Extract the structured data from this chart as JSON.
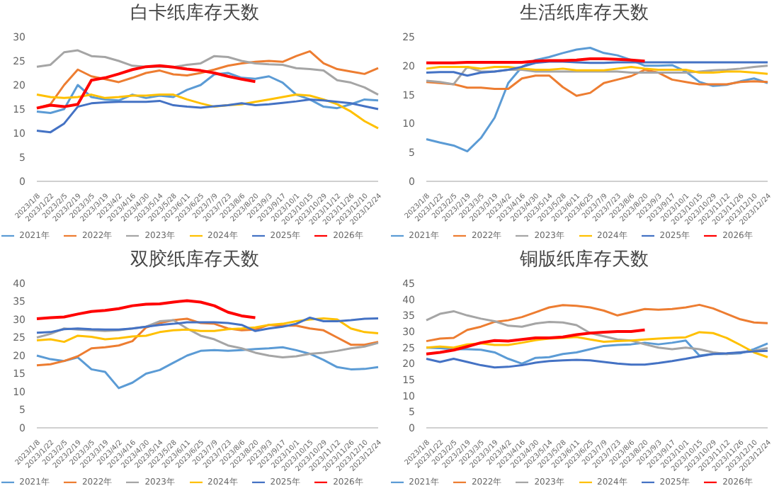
{
  "chart_data": [
    {
      "type": "line",
      "title": "白卡纸库存天数",
      "categories": [
        "2023/1/8",
        "2023/1/22",
        "2023/2/5",
        "2023/2/19",
        "2023/3/5",
        "2023/3/19",
        "2023/4/2",
        "2023/4/16",
        "2023/4/30",
        "2023/5/14",
        "2023/5/28",
        "2023/6/11",
        "2023/6/25",
        "2023/7/9",
        "2023/7/23",
        "2023/8/6",
        "2023/8/20",
        "2023/9/3",
        "2023/9/17",
        "2023/10/1",
        "2023/10/15",
        "2023/10/29",
        "2023/11/12",
        "2023/11/26",
        "2023/12/10",
        "2023/12/24"
      ],
      "ylim": [
        0,
        30
      ],
      "yticks": [
        0,
        5,
        10,
        15,
        20,
        25,
        30
      ],
      "grid": false,
      "legend": "bottom",
      "series": [
        {
          "name": "2021年",
          "color": "#5b9bd5",
          "values": [
            14.5,
            14.2,
            15,
            20,
            17.5,
            17,
            16.8,
            18,
            17.3,
            17.8,
            17.5,
            19,
            20,
            22.2,
            22.5,
            21.5,
            21.3,
            21.8,
            20.5,
            18,
            17,
            15.5,
            15.2,
            16,
            17,
            16.8
          ]
        },
        {
          "name": "2022年",
          "color": "#ed7d31",
          "values": [
            15.2,
            16,
            20,
            23.2,
            21.8,
            21.2,
            20.6,
            21.5,
            22.5,
            23,
            22.2,
            22,
            22.5,
            23.2,
            24,
            24.5,
            24.8,
            25,
            24.8,
            26,
            27,
            24.5,
            23.3,
            22.8,
            22.3,
            23.5
          ]
        },
        {
          "name": "2023年",
          "color": "#a5a5a5",
          "values": [
            23.8,
            24.2,
            26.8,
            27.2,
            26,
            25.8,
            25,
            24,
            23.8,
            23.8,
            23.7,
            24.2,
            24.5,
            26,
            25.8,
            25,
            24.5,
            24.3,
            24.2,
            23.5,
            23.3,
            23,
            21,
            20.5,
            19.5,
            18
          ]
        },
        {
          "name": "2024年",
          "color": "#ffc000",
          "values": [
            18,
            17.5,
            17.3,
            17.5,
            18,
            17.3,
            17.5,
            17.8,
            17.8,
            18,
            18,
            17,
            16.2,
            15.5,
            15.8,
            16,
            16.5,
            17,
            17.5,
            18,
            17.8,
            17,
            16,
            14.5,
            12.5,
            11
          ]
        },
        {
          "name": "2025年",
          "color": "#4472c4",
          "values": [
            10.5,
            10.2,
            12,
            15.5,
            16.2,
            16.4,
            16.5,
            16.5,
            16.5,
            16.7,
            15.8,
            15.5,
            15.3,
            15.6,
            15.8,
            16.2,
            15.8,
            16,
            16.3,
            16.6,
            17,
            16.8,
            16.5,
            16.2,
            15.6,
            15
          ]
        },
        {
          "name": "2026年",
          "color": "#ff0000",
          "values": [
            15.2,
            15.8,
            15.5,
            16,
            21,
            21.5,
            22.3,
            23.2,
            23.8,
            24,
            23.7,
            23.3,
            23,
            22.5,
            21.8,
            21.2,
            20.7,
            null,
            null,
            null,
            null,
            null,
            null,
            null,
            null,
            null
          ]
        }
      ]
    },
    {
      "type": "line",
      "title": "生活纸库存天数",
      "categories": [
        "2023/1/8",
        "2023/1/22",
        "2023/2/5",
        "2023/2/19",
        "2023/3/5",
        "2023/3/19",
        "2023/4/2",
        "2023/4/16",
        "2023/4/30",
        "2023/5/14",
        "2023/5/28",
        "2023/6/11",
        "2023/6/25",
        "2023/7/9",
        "2023/7/23",
        "2023/8/6",
        "2023/8/20",
        "2023/9/3",
        "2023/9/17",
        "2023/10/1",
        "2023/10/15",
        "2023/10/29",
        "2023/11/12",
        "2023/11/26",
        "2023/12/10",
        "2023/12/24"
      ],
      "ylim": [
        0,
        25
      ],
      "yticks": [
        0,
        5,
        10,
        15,
        20,
        25
      ],
      "grid": false,
      "legend": "bottom",
      "series": [
        {
          "name": "2021年",
          "color": "#5b9bd5",
          "values": [
            7.3,
            6.7,
            6.2,
            5.2,
            7.5,
            11,
            17,
            19.8,
            21,
            21.5,
            22.2,
            22.8,
            23.1,
            22.2,
            21.8,
            21,
            20,
            20,
            20.1,
            19,
            17.2,
            16.5,
            16.7,
            17.3,
            17.8,
            17
          ]
        },
        {
          "name": "2022年",
          "color": "#ed7d31",
          "values": [
            17.2,
            17,
            16.8,
            16.2,
            16.2,
            16,
            16,
            17.8,
            18.3,
            18.3,
            16.3,
            14.8,
            15.3,
            17,
            17.6,
            18.2,
            19.3,
            18.8,
            17.6,
            17.2,
            16.8,
            16.8,
            16.8,
            17.2,
            17.3,
            17.2
          ]
        },
        {
          "name": "2023年",
          "color": "#a5a5a5",
          "values": [
            17.4,
            17.2,
            16.8,
            19.8,
            19,
            19,
            19.3,
            19.3,
            19,
            19,
            19,
            19,
            19,
            19,
            19,
            18.8,
            18.8,
            18.8,
            18.8,
            18.8,
            19,
            19.2,
            19.3,
            19.5,
            19.8,
            20
          ]
        },
        {
          "name": "2024年",
          "color": "#ffc000",
          "values": [
            19.5,
            19.8,
            19.8,
            19.8,
            19.5,
            19.8,
            19.8,
            19.5,
            19.3,
            19.3,
            19.5,
            19.2,
            19.2,
            19.2,
            19.5,
            19.8,
            19.5,
            19.3,
            19.3,
            19.3,
            18.8,
            18.8,
            19,
            19,
            18.8,
            18.6
          ]
        },
        {
          "name": "2025年",
          "color": "#4472c4",
          "values": [
            18.8,
            18.9,
            18.9,
            18.3,
            18.8,
            19,
            19.3,
            19.8,
            20.5,
            20.7,
            20.7,
            20.6,
            20.5,
            20.5,
            20.6,
            20.6,
            20.6,
            20.6,
            20.6,
            20.6,
            20.6,
            20.6,
            20.6,
            20.6,
            20.6,
            20.6
          ]
        },
        {
          "name": "2026年",
          "color": "#ff0000",
          "values": [
            20.5,
            20.5,
            20.5,
            20.6,
            20.6,
            20.6,
            20.6,
            20.6,
            20.8,
            20.9,
            20.9,
            21,
            21.2,
            21.2,
            21.1,
            21,
            20.8,
            null,
            null,
            null,
            null,
            null,
            null,
            null,
            null,
            null
          ]
        }
      ]
    },
    {
      "type": "line",
      "title": "双胶纸库存天数",
      "categories": [
        "2023/1/8",
        "2023/1/22",
        "2023/2/5",
        "2023/2/19",
        "2023/3/5",
        "2023/3/19",
        "2023/4/2",
        "2023/4/16",
        "2023/4/30",
        "2023/5/14",
        "2023/5/28",
        "2023/6/11",
        "2023/6/25",
        "2023/7/9",
        "2023/7/23",
        "2023/8/6",
        "2023/8/20",
        "2023/9/3",
        "2023/9/17",
        "2023/10/1",
        "2023/10/15",
        "2023/10/29",
        "2023/11/12",
        "2023/11/26",
        "2023/12/10",
        "2023/12/24"
      ],
      "ylim": [
        0,
        40
      ],
      "yticks": [
        0,
        5,
        10,
        15,
        20,
        25,
        30,
        35,
        40
      ],
      "grid": false,
      "legend": "bottom",
      "series": [
        {
          "name": "2021年",
          "color": "#5b9bd5",
          "values": [
            20,
            19,
            18.5,
            19.5,
            16.2,
            15.5,
            11,
            12.5,
            15,
            16,
            18,
            20,
            21.3,
            21.5,
            21.3,
            21.5,
            21.8,
            22,
            22.3,
            21.5,
            20.5,
            18.8,
            16.8,
            16.2,
            16.3,
            16.8
          ]
        },
        {
          "name": "2022年",
          "color": "#ed7d31",
          "values": [
            17.3,
            17.6,
            18.5,
            19.8,
            22,
            22.3,
            22.8,
            24,
            27.8,
            29,
            29.8,
            30.2,
            29,
            28.8,
            27.5,
            27,
            27.2,
            28.5,
            28.3,
            28.3,
            27.5,
            27,
            25,
            23,
            23,
            23.8
          ]
        },
        {
          "name": "2023年",
          "color": "#a5a5a5",
          "values": [
            25,
            26,
            27.5,
            27.2,
            27,
            26.8,
            27,
            27.5,
            28,
            29.5,
            29.8,
            27.5,
            25.5,
            24.5,
            22.8,
            22,
            20.8,
            20,
            19.5,
            19.8,
            20.5,
            20.8,
            21.3,
            22,
            22.5,
            23.5
          ]
        },
        {
          "name": "2024年",
          "color": "#ffc000",
          "values": [
            24.2,
            24.5,
            23.8,
            25.5,
            25.2,
            24.5,
            24.8,
            25.3,
            25.5,
            26.5,
            27,
            27.2,
            26.8,
            26.8,
            27.3,
            27.5,
            27.8,
            28.5,
            28.8,
            29.5,
            30,
            30.3,
            30,
            27.5,
            26.5,
            26.2
          ]
        },
        {
          "name": "2025年",
          "color": "#4472c4",
          "values": [
            26.3,
            26.5,
            27.3,
            27.5,
            27.3,
            27.2,
            27.2,
            27.5,
            28,
            28.5,
            28.8,
            29.2,
            29.2,
            29.2,
            29,
            28.5,
            26.8,
            27.5,
            28,
            28.8,
            30.5,
            29.5,
            29.5,
            29.8,
            30.2,
            30.3
          ]
        },
        {
          "name": "2026年",
          "color": "#ff0000",
          "values": [
            30.2,
            30.5,
            30.7,
            31.5,
            32.2,
            32.5,
            33,
            33.8,
            34.2,
            34.3,
            34.8,
            35.2,
            34.8,
            33.8,
            32,
            31,
            30.5,
            null,
            null,
            null,
            null,
            null,
            null,
            null,
            null,
            null
          ]
        }
      ]
    },
    {
      "type": "line",
      "title": "铜版纸库存天数",
      "categories": [
        "2023/1/8",
        "2023/1/22",
        "2023/2/5",
        "2023/2/19",
        "2023/3/5",
        "2023/3/19",
        "2023/4/2",
        "2023/4/16",
        "2023/4/30",
        "2023/5/14",
        "2023/5/28",
        "2023/6/11",
        "2023/6/25",
        "2023/7/9",
        "2023/7/23",
        "2023/8/6",
        "2023/8/20",
        "2023/9/3",
        "2023/9/17",
        "2023/10/1",
        "2023/10/15",
        "2023/10/29",
        "2023/11/12",
        "2023/11/26",
        "2023/12/10",
        "2023/12/24"
      ],
      "ylim": [
        0,
        45
      ],
      "yticks": [
        0,
        5,
        10,
        15,
        20,
        25,
        30,
        35,
        40,
        45
      ],
      "grid": false,
      "legend": "bottom",
      "series": [
        {
          "name": "2021年",
          "color": "#5b9bd5",
          "values": [
            25,
            24.8,
            24.5,
            24.5,
            24.3,
            23.5,
            21.5,
            20,
            21.8,
            22,
            23,
            23.5,
            24.5,
            25.5,
            25.8,
            26,
            26.5,
            26,
            26.5,
            27.2,
            22.5,
            23,
            23,
            23.2,
            24.5,
            26.3
          ]
        },
        {
          "name": "2022年",
          "color": "#ed7d31",
          "values": [
            27,
            27.8,
            28,
            30.5,
            31.5,
            33,
            33.5,
            34.5,
            36,
            37.5,
            38.2,
            38,
            37.5,
            36.5,
            35,
            36,
            37,
            36.8,
            37,
            37.5,
            38.3,
            37.2,
            35.5,
            33.8,
            32.8,
            32.6
          ]
        },
        {
          "name": "2023年",
          "color": "#a5a5a5",
          "values": [
            33.5,
            35.5,
            36.3,
            35,
            34,
            33.2,
            31.8,
            31.5,
            32.5,
            33,
            32.8,
            32,
            29.5,
            28.5,
            27.5,
            27.2,
            26,
            25,
            24.5,
            25,
            24.5,
            23.5,
            23,
            23.5,
            24,
            24.8
          ]
        },
        {
          "name": "2024年",
          "color": "#ffc000",
          "values": [
            25,
            25.3,
            25,
            26,
            26.3,
            25.8,
            25.8,
            26.5,
            27.3,
            27.8,
            28,
            28.3,
            27.5,
            26.8,
            27,
            27.2,
            27.5,
            27.8,
            28,
            28.2,
            29.8,
            29.5,
            28,
            25.8,
            23.5,
            22
          ]
        },
        {
          "name": "2025年",
          "color": "#4472c4",
          "values": [
            21.5,
            20.5,
            21.5,
            20.5,
            19.5,
            18.8,
            19,
            19.5,
            20.3,
            20.8,
            21,
            21.2,
            21,
            20.5,
            20,
            19.7,
            19.7,
            20.2,
            20.8,
            21.5,
            22.3,
            23,
            23.2,
            23.5,
            23.8,
            24
          ]
        },
        {
          "name": "2026年",
          "color": "#ff0000",
          "values": [
            23,
            23.5,
            24.2,
            25.3,
            26.5,
            27.2,
            27,
            27.5,
            28,
            28,
            28.3,
            29,
            29.5,
            29.8,
            30,
            30,
            30.5,
            null,
            null,
            null,
            null,
            null,
            null,
            null,
            null,
            null
          ]
        }
      ]
    }
  ]
}
